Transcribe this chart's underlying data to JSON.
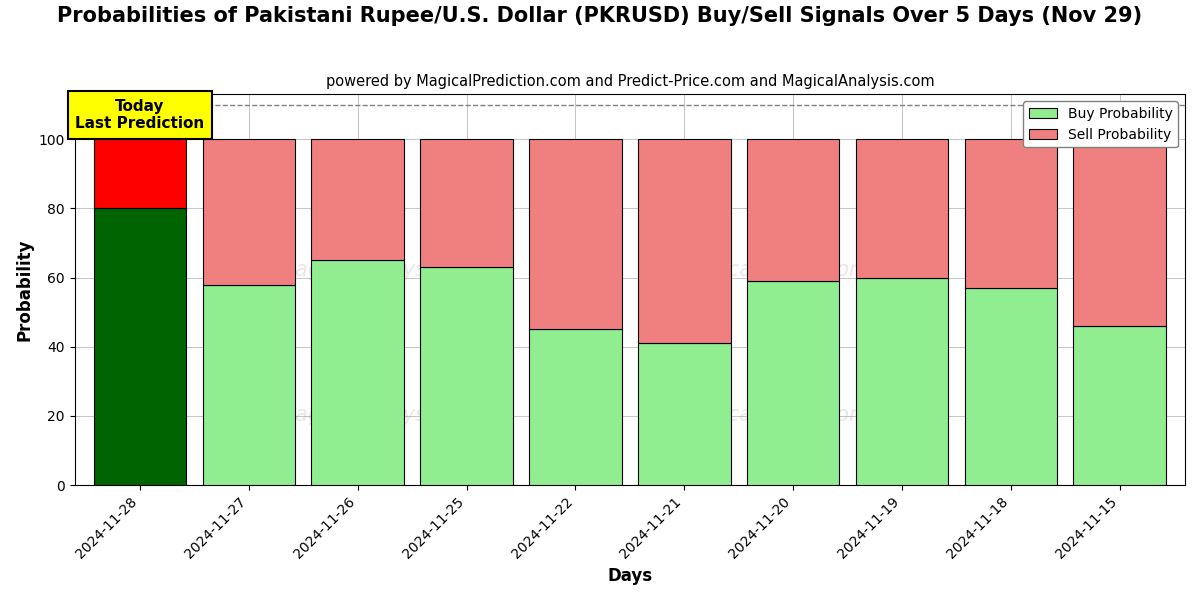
{
  "title": "Probabilities of Pakistani Rupee/U.S. Dollar (PKRUSD) Buy/Sell Signals Over 5 Days (Nov 29)",
  "subtitle": "powered by MagicalPrediction.com and Predict-Price.com and MagicalAnalysis.com",
  "xlabel": "Days",
  "ylabel": "Probability",
  "dates": [
    "2024-11-28",
    "2024-11-27",
    "2024-11-26",
    "2024-11-25",
    "2024-11-22",
    "2024-11-21",
    "2024-11-20",
    "2024-11-19",
    "2024-11-18",
    "2024-11-15"
  ],
  "buy_values": [
    80,
    58,
    65,
    63,
    45,
    41,
    59,
    60,
    57,
    46
  ],
  "sell_values": [
    20,
    42,
    35,
    37,
    55,
    59,
    41,
    40,
    43,
    54
  ],
  "today_bar_buy_color": "#006400",
  "today_bar_sell_color": "#ff0000",
  "regular_buy_color": "#90EE90",
  "regular_sell_color": "#F08080",
  "today_label_bg": "#ffff00",
  "today_label_text": "Today\nLast Prediction",
  "legend_buy_label": "Buy Probability",
  "legend_sell_label": "Sell Probability",
  "ylim": [
    0,
    113
  ],
  "yticks": [
    0,
    20,
    40,
    60,
    80,
    100
  ],
  "dashed_line_y": 110,
  "background_color": "#ffffff",
  "grid_color": "#bbbbbb",
  "title_fontsize": 15,
  "subtitle_fontsize": 10.5,
  "axis_label_fontsize": 12,
  "tick_fontsize": 10,
  "bar_width": 0.85
}
